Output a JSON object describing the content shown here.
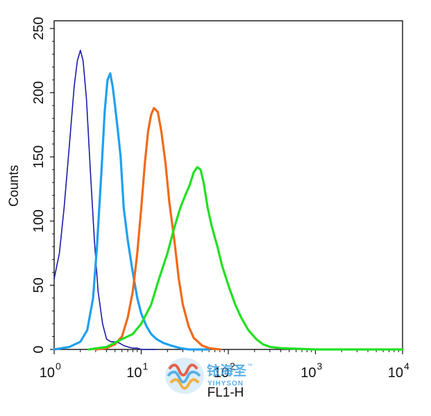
{
  "chart_data": {
    "type": "line",
    "xlabel": "FL1-H",
    "ylabel": "Counts",
    "x_scale": "log",
    "xlim": [
      1,
      10000
    ],
    "ylim": [
      0,
      256
    ],
    "x_ticks": [
      {
        "value": 1,
        "base": "10",
        "exp": "0"
      },
      {
        "value": 10,
        "base": "10",
        "exp": "1"
      },
      {
        "value": 100,
        "base": "10",
        "exp": "2"
      },
      {
        "value": 1000,
        "base": "10",
        "exp": "3"
      },
      {
        "value": 10000,
        "base": "10",
        "exp": "4"
      }
    ],
    "y_ticks": [
      0,
      50,
      100,
      150,
      200,
      250
    ],
    "grid": false,
    "series": [
      {
        "color": "#1a1aa8",
        "stroke_width": 1.6,
        "x": [
          1.0,
          1.15,
          1.3,
          1.5,
          1.7,
          1.85,
          2.0,
          2.15,
          2.35,
          2.6,
          2.9,
          3.2,
          3.6,
          4.0,
          4.5,
          5.0,
          5.6,
          6.3,
          7.0,
          8.0,
          9.0,
          10.0,
          12.0,
          15.0
        ],
        "y": [
          55,
          75,
          110,
          160,
          205,
          225,
          233,
          225,
          195,
          140,
          85,
          45,
          20,
          8,
          6,
          6,
          5,
          3,
          2,
          1,
          1,
          0,
          0,
          0
        ]
      },
      {
        "color": "#1ea0f0",
        "stroke_width": 3.2,
        "x": [
          1.0,
          1.5,
          2.0,
          2.4,
          2.8,
          3.1,
          3.5,
          3.8,
          4.1,
          4.4,
          4.7,
          5.0,
          5.4,
          5.8,
          6.3,
          7.0,
          8.0,
          9.0,
          10.0,
          11.5,
          13.0,
          15.0,
          18.0,
          22.0,
          28.0,
          35.0,
          45.0,
          60.0
        ],
        "y": [
          0,
          2,
          6,
          15,
          40,
          80,
          140,
          185,
          210,
          215,
          205,
          190,
          170,
          150,
          110,
          85,
          60,
          40,
          28,
          18,
          12,
          8,
          5,
          3,
          1,
          0,
          0,
          0
        ]
      },
      {
        "color": "#f06a1a",
        "stroke_width": 3.2,
        "x": [
          3.0,
          4.0,
          5.0,
          6.0,
          7.0,
          8.0,
          9.0,
          10.0,
          11.0,
          12.0,
          13.0,
          14.0,
          15.5,
          17.0,
          19.0,
          21.0,
          24.0,
          27.0,
          30.0,
          35.0,
          40.0,
          50.0,
          60.0,
          80.0
        ],
        "y": [
          0,
          1,
          4,
          10,
          25,
          45,
          75,
          110,
          145,
          170,
          183,
          188,
          185,
          170,
          145,
          115,
          85,
          55,
          35,
          18,
          9,
          3,
          1,
          0
        ]
      },
      {
        "color": "#22e022",
        "stroke_width": 3.2,
        "x": [
          2.5,
          4.0,
          6.0,
          8.0,
          10.0,
          13.0,
          16.0,
          20.0,
          24.0,
          28.0,
          32.0,
          36.0,
          40.0,
          44.0,
          48.0,
          52.0,
          58.0,
          65.0,
          75.0,
          85.0,
          100.0,
          120.0,
          140.0,
          170.0,
          210.0,
          250.0,
          300.0,
          400.0,
          1000.0,
          10000.0
        ],
        "y": [
          0,
          2,
          8,
          12,
          20,
          35,
          55,
          75,
          95,
          110,
          120,
          128,
          138,
          142,
          140,
          130,
          110,
          95,
          80,
          65,
          50,
          35,
          25,
          15,
          8,
          4,
          2,
          1,
          0,
          0
        ]
      }
    ]
  },
  "watermark": {
    "name": "铱海圣",
    "trademark": "™",
    "sub": "YIHYSON"
  }
}
